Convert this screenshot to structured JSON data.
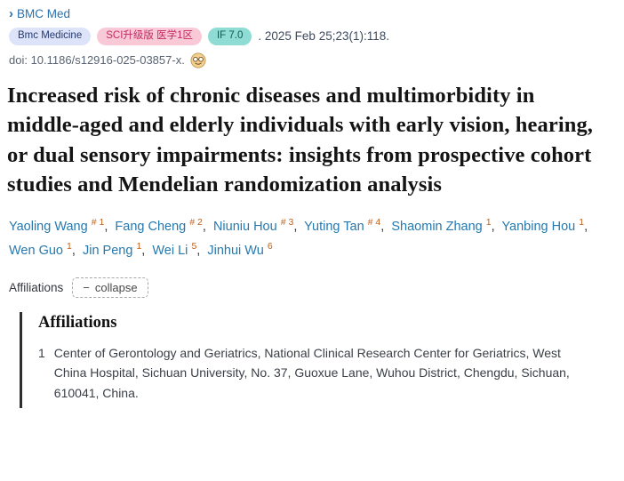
{
  "header": {
    "journal_link": "BMC Med",
    "badges": [
      {
        "label": "Bmc Medicine",
        "bg": "#dde3f9",
        "color": "#25386e"
      },
      {
        "label": "SCI升级版 医学1区",
        "bg": "#fac9d8",
        "color": "#c42a62"
      },
      {
        "label": "IF 7.0",
        "bg": "#8edcd4",
        "color": "#0d5a52"
      }
    ],
    "citation": ". 2025 Feb 25;23(1):118.",
    "doi": "doi: 10.1186/s12916-025-03857-x.",
    "doi_icon": "scholar-reader-icon"
  },
  "title": "Increased risk of chronic diseases and multimorbidity in middle-aged and elderly individuals with early vision, hearing, or dual sensory impairments: insights from prospective cohort studies and Mendelian randomization analysis",
  "authors": [
    {
      "name": "Yaoling Wang",
      "marker": "#",
      "sup": "1"
    },
    {
      "name": "Fang Cheng",
      "marker": "#",
      "sup": "2"
    },
    {
      "name": "Niuniu Hou",
      "marker": "#",
      "sup": "3"
    },
    {
      "name": "Yuting Tan",
      "marker": "#",
      "sup": "4"
    },
    {
      "name": "Shaomin Zhang",
      "marker": "",
      "sup": "1"
    },
    {
      "name": "Yanbing Hou",
      "marker": "",
      "sup": "1"
    },
    {
      "name": "Wen Guo",
      "marker": "",
      "sup": "1"
    },
    {
      "name": "Jin Peng",
      "marker": "",
      "sup": "1"
    },
    {
      "name": "Wei Li",
      "marker": "",
      "sup": "5"
    },
    {
      "name": "Jinhui Wu",
      "marker": "",
      "sup": "6"
    }
  ],
  "affiliations_bar": {
    "label": "Affiliations",
    "collapse_minus": "−",
    "collapse_label": "collapse"
  },
  "affiliations": {
    "heading": "Affiliations",
    "items": [
      {
        "num": "1",
        "text": "Center of Gerontology and Geriatrics, National Clinical Research Center for Geriatrics, West China Hospital, Sichuan University, No. 37, Guoxue Lane, Wuhou District, Chengdu, Sichuan, 610041, China."
      }
    ]
  }
}
